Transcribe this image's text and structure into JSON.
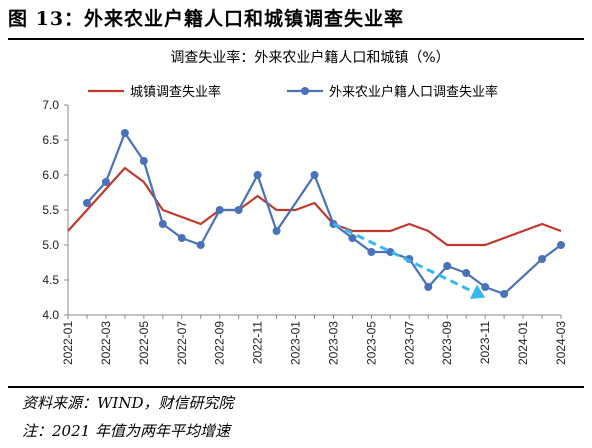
{
  "figure_title": "图 13：外来农业户籍人口和城镇调查失业率",
  "source": "资料来源：WIND，财信研究院",
  "note": "注：2021 年值为两年平均增速",
  "chart_data": {
    "type": "line",
    "title": "调查失业率：外来农业户籍人口和城镇（%）",
    "ylim": [
      4.0,
      7.0
    ],
    "yticks": [
      "4.0",
      "4.5",
      "5.0",
      "5.5",
      "6.0",
      "6.5",
      "7.0"
    ],
    "x": [
      "2022-01",
      "2022-02",
      "2022-03",
      "2022-04",
      "2022-05",
      "2022-06",
      "2022-07",
      "2022-08",
      "2022-09",
      "2022-10",
      "2022-11",
      "2022-12",
      "2023-01",
      "2023-02",
      "2023-03",
      "2023-04",
      "2023-05",
      "2023-06",
      "2023-07",
      "2023-08",
      "2023-09",
      "2023-10",
      "2023-11",
      "2023-12",
      "2024-01",
      "2024-02",
      "2024-03"
    ],
    "xtick_labels": [
      "2022-01",
      "2022-03",
      "2022-05",
      "2022-07",
      "2022-09",
      "2022-11",
      "2023-01",
      "2023-03",
      "2023-05",
      "2023-07",
      "2023-09",
      "2023-11",
      "2024-01",
      "2024-03"
    ],
    "series": [
      {
        "name": "城镇调查失业率",
        "color": "#c0392b",
        "values": [
          5.2,
          5.5,
          5.8,
          6.1,
          5.9,
          5.5,
          5.4,
          5.3,
          5.5,
          5.5,
          5.7,
          5.5,
          5.5,
          5.6,
          5.3,
          5.2,
          5.2,
          5.2,
          5.3,
          5.2,
          5.0,
          5.0,
          5.0,
          5.1,
          5.2,
          5.3,
          5.2
        ]
      },
      {
        "name": "外来农业户籍人口调查失业率",
        "color": "#4a72b8",
        "values": [
          null,
          5.6,
          5.9,
          6.6,
          6.2,
          5.3,
          5.1,
          5.0,
          5.5,
          5.5,
          6.0,
          5.2,
          null,
          6.0,
          5.3,
          5.1,
          4.9,
          4.9,
          4.8,
          4.4,
          4.7,
          4.6,
          4.4,
          4.3,
          null,
          4.8,
          5.0
        ]
      }
    ],
    "trend_arrow": {
      "color": "#33b8ef",
      "from": {
        "x": "2023-03",
        "y": 5.3
      },
      "to": {
        "x": "2023-11",
        "y": 4.25
      }
    }
  }
}
